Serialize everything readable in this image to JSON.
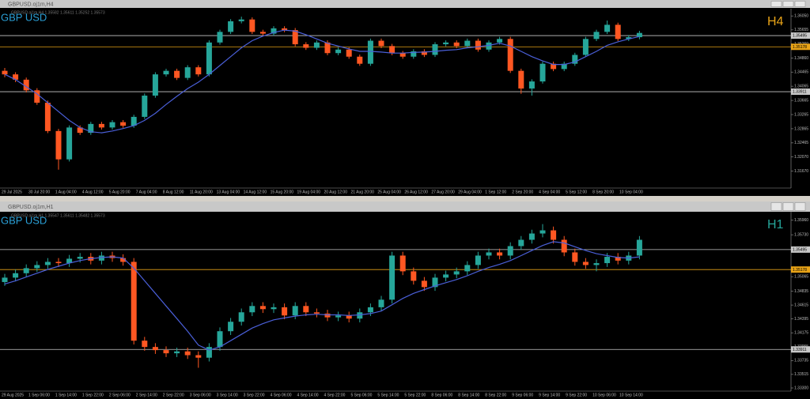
{
  "chart_data": [
    {
      "type": "candlestick",
      "title": "GBPUSD.oj1m,H4",
      "info": "GBPUSD.oj1m,H4  1.35582 1.35611 1.35252 1.35573",
      "symbol": "GBP USD",
      "timeframe": "H4",
      "up_color": "#26a69a",
      "down_color": "#ff5722",
      "ma_color": "#4a5fd8",
      "timeframe_color": "#e8a317",
      "ylim": [
        1.3119,
        1.3621
      ],
      "yticks": [
        {
          "value": 1.3605,
          "label": "1.36050"
        },
        1.35655,
        {
          "value": 1.3526,
          "label": "1.35260"
        },
        {
          "value": 1.3486,
          "label": "1.34860"
        },
        1.34465,
        1.34065,
        1.33665,
        1.33265,
        1.32865,
        1.32465,
        {
          "value": 1.3207,
          "label": "1.32070"
        },
        {
          "value": 1.3167,
          "label": "1.31670"
        }
      ],
      "levels": [
        {
          "value": 1.35495,
          "color": "#c8c8c8"
        },
        {
          "value": 1.35178,
          "color": "#e8a317"
        },
        {
          "value": 1.33911,
          "color": "#c8c8c8"
        }
      ],
      "x_labels": [
        "29 Jul 2025",
        "30 Jul 20:00",
        "1 Aug 04:00",
        "4 Aug 12:00",
        "5 Aug 20:00",
        "7 Aug 04:00",
        "8 Aug 12:00",
        "11 Aug 20:00",
        "13 Aug 04:00",
        "14 Aug 12:00",
        "15 Aug 20:00",
        "19 Aug 04:00",
        "20 Aug 12:00",
        "21 Aug 20:00",
        "25 Aug 04:00",
        "26 Aug 12:00",
        "27 Aug 20:00",
        "29 Aug 04:00",
        "1 Sep 12:00",
        "2 Sep 20:00",
        "4 Sep 04:00",
        "5 Sep 12:00",
        "8 Sep 20:00",
        "10 Sep 04:00"
      ],
      "candles": [
        [
          1.345,
          1.3458,
          1.3432,
          1.344
        ],
        [
          1.344,
          1.3446,
          1.3418,
          1.3425
        ],
        [
          1.3425,
          1.3431,
          1.3389,
          1.3395
        ],
        [
          1.3395,
          1.3401,
          1.3354,
          1.336
        ],
        [
          1.336,
          1.3366,
          1.3274,
          1.328
        ],
        [
          1.328,
          1.3286,
          1.3171,
          1.32
        ],
        [
          1.32,
          1.3296,
          1.3194,
          1.329
        ],
        [
          1.329,
          1.3296,
          1.3269,
          1.3275
        ],
        [
          1.3275,
          1.3306,
          1.3269,
          1.33
        ],
        [
          1.33,
          1.3306,
          1.3284,
          1.329
        ],
        [
          1.329,
          1.3311,
          1.3284,
          1.3305
        ],
        [
          1.3305,
          1.3311,
          1.3289,
          1.3295
        ],
        [
          1.3295,
          1.3326,
          1.3289,
          1.332
        ],
        [
          1.332,
          1.3386,
          1.3314,
          1.338
        ],
        [
          1.338,
          1.3446,
          1.3374,
          1.344
        ],
        [
          1.344,
          1.3456,
          1.3434,
          1.345
        ],
        [
          1.345,
          1.3456,
          1.3424,
          1.343
        ],
        [
          1.343,
          1.3466,
          1.3424,
          1.346
        ],
        [
          1.346,
          1.3466,
          1.3434,
          1.344
        ],
        [
          1.344,
          1.3536,
          1.3434,
          1.353
        ],
        [
          1.353,
          1.3566,
          1.3524,
          1.356
        ],
        [
          1.356,
          1.3596,
          1.3554,
          1.359
        ],
        [
          1.359,
          1.3603,
          1.3584,
          1.3595
        ],
        [
          1.3595,
          1.3601,
          1.3554,
          1.356
        ],
        [
          1.356,
          1.3566,
          1.3549,
          1.3555
        ],
        [
          1.3555,
          1.3576,
          1.3549,
          1.357
        ],
        [
          1.357,
          1.3576,
          1.3559,
          1.3565
        ],
        [
          1.3565,
          1.3571,
          1.3519,
          1.3525
        ],
        [
          1.3525,
          1.3531,
          1.3509,
          1.3515
        ],
        [
          1.3515,
          1.3536,
          1.3509,
          1.353
        ],
        [
          1.353,
          1.3536,
          1.3494,
          1.35
        ],
        [
          1.35,
          1.3516,
          1.3494,
          1.351
        ],
        [
          1.351,
          1.3516,
          1.3484,
          1.349
        ],
        [
          1.349,
          1.3496,
          1.3464,
          1.347
        ],
        [
          1.347,
          1.3541,
          1.3464,
          1.3535
        ],
        [
          1.3535,
          1.3541,
          1.3514,
          1.352
        ],
        [
          1.352,
          1.3526,
          1.3494,
          1.35
        ],
        [
          1.35,
          1.3506,
          1.3484,
          1.349
        ],
        [
          1.349,
          1.3511,
          1.3484,
          1.3505
        ],
        [
          1.3505,
          1.3511,
          1.3489,
          1.3495
        ],
        [
          1.3495,
          1.3531,
          1.3489,
          1.3525
        ],
        [
          1.3525,
          1.3536,
          1.3519,
          1.353
        ],
        [
          1.353,
          1.3536,
          1.3514,
          1.352
        ],
        [
          1.352,
          1.3541,
          1.3514,
          1.3535
        ],
        [
          1.3535,
          1.3541,
          1.3504,
          1.351
        ],
        [
          1.351,
          1.3536,
          1.3504,
          1.353
        ],
        [
          1.353,
          1.3546,
          1.3524,
          1.354
        ],
        [
          1.354,
          1.3546,
          1.3444,
          1.345
        ],
        [
          1.345,
          1.3456,
          1.3385,
          1.34
        ],
        [
          1.34,
          1.3426,
          1.338,
          1.342
        ],
        [
          1.342,
          1.3476,
          1.3414,
          1.347
        ],
        [
          1.347,
          1.3476,
          1.3449,
          1.3455
        ],
        [
          1.3455,
          1.3476,
          1.3449,
          1.347
        ],
        [
          1.347,
          1.3501,
          1.3464,
          1.3495
        ],
        [
          1.3495,
          1.3546,
          1.3489,
          1.354
        ],
        [
          1.354,
          1.3566,
          1.3534,
          1.356
        ],
        [
          1.356,
          1.3592,
          1.3554,
          1.358
        ],
        [
          1.358,
          1.3586,
          1.3534,
          1.354
        ],
        [
          1.354,
          1.3551,
          1.3534,
          1.3545
        ],
        [
          1.3545,
          1.3563,
          1.3539,
          1.3557
        ]
      ],
      "ma": [
        1.344,
        1.3425,
        1.3405,
        1.3385,
        1.336,
        1.3335,
        1.331,
        1.329,
        1.3278,
        1.3275,
        1.328,
        1.3287,
        1.3295,
        1.331,
        1.333,
        1.3355,
        1.3378,
        1.34,
        1.3418,
        1.344,
        1.3465,
        1.349,
        1.3515,
        1.3535,
        1.3548,
        1.3558,
        1.3565,
        1.3562,
        1.3552,
        1.354,
        1.3528,
        1.352,
        1.3512,
        1.3505,
        1.3505,
        1.3503,
        1.35,
        1.35,
        1.3502,
        1.3503,
        1.3505,
        1.3508,
        1.351,
        1.3515,
        1.3518,
        1.3522,
        1.3528,
        1.352,
        1.3505,
        1.349,
        1.3478,
        1.3468,
        1.3468,
        1.3475,
        1.349,
        1.3505,
        1.3522,
        1.3532,
        1.354,
        1.3547
      ]
    },
    {
      "type": "candlestick",
      "title": "GBPUSD.oj1m,H1",
      "info": "GBPUSD.oj1m,H1  1.35547 1.35611 1.35482 1.35573",
      "symbol": "GBP USD",
      "timeframe": "H1",
      "up_color": "#26a69a",
      "down_color": "#ff5722",
      "ma_color": "#4a5fd8",
      "timeframe_color": "#26a69a",
      "ylim": [
        1.3325,
        1.3607
      ],
      "yticks": [
        {
          "value": 1.3596,
          "label": "1.35960"
        },
        {
          "value": 1.3573,
          "label": "1.35730"
        },
        1.35065,
        1.34835,
        1.34615,
        1.34395,
        1.34175,
        1.33955,
        1.33735,
        1.33515,
        {
          "value": 1.333,
          "label": "1.33300"
        }
      ],
      "levels": [
        {
          "value": 1.35495,
          "color": "#c8c8c8"
        },
        {
          "value": 1.35178,
          "color": "#e8a317"
        },
        {
          "value": 1.33911,
          "color": "#c8c8c8"
        }
      ],
      "x_labels": [
        "29 Aug 2025",
        "1 Sep 06:00",
        "1 Sep 14:00",
        "1 Sep 22:00",
        "2 Sep 06:00",
        "2 Sep 14:00",
        "2 Sep 22:00",
        "3 Sep 06:00",
        "3 Sep 14:00",
        "3 Sep 22:00",
        "4 Sep 06:00",
        "4 Sep 14:00",
        "4 Sep 22:00",
        "5 Sep 06:00",
        "5 Sep 14:00",
        "5 Sep 22:00",
        "8 Sep 06:00",
        "8 Sep 14:00",
        "8 Sep 22:00",
        "9 Sep 06:00",
        "9 Sep 14:00",
        "9 Sep 22:00",
        "10 Sep 06:00",
        "10 Sep 14:00"
      ],
      "candles": [
        [
          1.3498,
          1.3511,
          1.3492,
          1.3505
        ],
        [
          1.3505,
          1.3518,
          1.3499,
          1.3512
        ],
        [
          1.3512,
          1.3526,
          1.3506,
          1.352
        ],
        [
          1.352,
          1.3531,
          1.3514,
          1.3525
        ],
        [
          1.3525,
          1.3536,
          1.3519,
          1.353
        ],
        [
          1.353,
          1.3536,
          1.3522,
          1.3528
        ],
        [
          1.3528,
          1.3541,
          1.3522,
          1.3535
        ],
        [
          1.3535,
          1.3544,
          1.3529,
          1.3538
        ],
        [
          1.3538,
          1.3544,
          1.3526,
          1.3532
        ],
        [
          1.3532,
          1.3546,
          1.3526,
          1.354
        ],
        [
          1.354,
          1.3546,
          1.353,
          1.3536
        ],
        [
          1.3536,
          1.3542,
          1.3524,
          1.353
        ],
        [
          1.353,
          1.3536,
          1.3399,
          1.3405
        ],
        [
          1.3405,
          1.3411,
          1.3389,
          1.3395
        ],
        [
          1.3395,
          1.3401,
          1.3384,
          1.339
        ],
        [
          1.339,
          1.3396,
          1.3379,
          1.3385
        ],
        [
          1.3385,
          1.3394,
          1.3379,
          1.3388
        ],
        [
          1.3388,
          1.3394,
          1.3376,
          1.3382
        ],
        [
          1.3382,
          1.3388,
          1.3362,
          1.3378
        ],
        [
          1.3378,
          1.3401,
          1.3372,
          1.3395
        ],
        [
          1.3395,
          1.3426,
          1.3389,
          1.342
        ],
        [
          1.342,
          1.3441,
          1.3414,
          1.3435
        ],
        [
          1.3435,
          1.3456,
          1.3429,
          1.345
        ],
        [
          1.345,
          1.3466,
          1.3444,
          1.346
        ],
        [
          1.346,
          1.3466,
          1.3449,
          1.3455
        ],
        [
          1.3455,
          1.3464,
          1.3449,
          1.3458
        ],
        [
          1.3458,
          1.3464,
          1.3439,
          1.3445
        ],
        [
          1.3445,
          1.3466,
          1.3439,
          1.346
        ],
        [
          1.346,
          1.3466,
          1.3444,
          1.345
        ],
        [
          1.345,
          1.3456,
          1.3442,
          1.3448
        ],
        [
          1.3448,
          1.3454,
          1.3436,
          1.3442
        ],
        [
          1.3442,
          1.3451,
          1.3436,
          1.3445
        ],
        [
          1.3445,
          1.3451,
          1.3434,
          1.344
        ],
        [
          1.344,
          1.3456,
          1.3434,
          1.345
        ],
        [
          1.345,
          1.3464,
          1.3444,
          1.3458
        ],
        [
          1.3458,
          1.3476,
          1.3452,
          1.347
        ],
        [
          1.347,
          1.3546,
          1.3464,
          1.354
        ],
        [
          1.354,
          1.3546,
          1.3509,
          1.3515
        ],
        [
          1.3515,
          1.3521,
          1.3494,
          1.35
        ],
        [
          1.35,
          1.3506,
          1.3484,
          1.349
        ],
        [
          1.349,
          1.3511,
          1.3484,
          1.3505
        ],
        [
          1.3505,
          1.3516,
          1.3499,
          1.351
        ],
        [
          1.351,
          1.3521,
          1.3504,
          1.3515
        ],
        [
          1.3515,
          1.3531,
          1.3509,
          1.3525
        ],
        [
          1.3525,
          1.3546,
          1.3519,
          1.354
        ],
        [
          1.354,
          1.3551,
          1.3534,
          1.3545
        ],
        [
          1.3545,
          1.3551,
          1.3534,
          1.354
        ],
        [
          1.354,
          1.3561,
          1.3534,
          1.3555
        ],
        [
          1.3555,
          1.3571,
          1.3549,
          1.3565
        ],
        [
          1.3565,
          1.3581,
          1.3559,
          1.3575
        ],
        [
          1.3575,
          1.359,
          1.3569,
          1.358
        ],
        [
          1.358,
          1.3586,
          1.3559,
          1.3565
        ],
        [
          1.3565,
          1.3571,
          1.3539,
          1.3545
        ],
        [
          1.3545,
          1.3551,
          1.3524,
          1.353
        ],
        [
          1.353,
          1.3536,
          1.3519,
          1.3525
        ],
        [
          1.3525,
          1.3534,
          1.3515,
          1.3528
        ],
        [
          1.3528,
          1.3544,
          1.3522,
          1.3538
        ],
        [
          1.3538,
          1.3544,
          1.3526,
          1.3532
        ],
        [
          1.3532,
          1.3546,
          1.3526,
          1.354
        ],
        [
          1.354,
          1.3571,
          1.3534,
          1.3565
        ]
      ],
      "ma": [
        1.3495,
        1.35,
        1.3506,
        1.3512,
        1.3518,
        1.3523,
        1.3528,
        1.3532,
        1.3535,
        1.3537,
        1.3538,
        1.3536,
        1.352,
        1.35,
        1.348,
        1.346,
        1.344,
        1.342,
        1.3398,
        1.339,
        1.3395,
        1.3405,
        1.3415,
        1.3425,
        1.3432,
        1.3438,
        1.3441,
        1.3444,
        1.3446,
        1.3447,
        1.3446,
        1.3446,
        1.3445,
        1.3446,
        1.3448,
        1.3452,
        1.3462,
        1.3472,
        1.348,
        1.3486,
        1.3492,
        1.3497,
        1.3502,
        1.3508,
        1.3515,
        1.3521,
        1.3526,
        1.3532,
        1.354,
        1.3548,
        1.3556,
        1.3562,
        1.356,
        1.3554,
        1.3548,
        1.3543,
        1.354,
        1.3537,
        1.3536,
        1.3538
      ]
    }
  ]
}
